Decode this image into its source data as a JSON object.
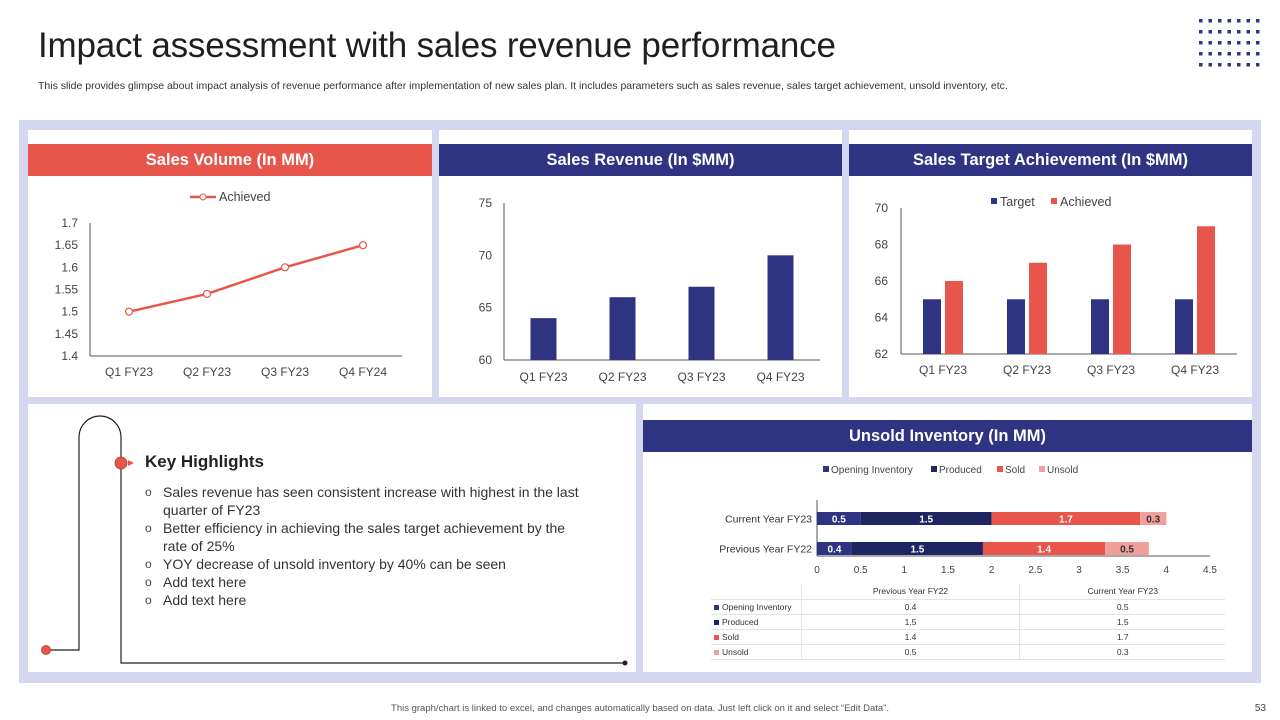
{
  "header": {
    "title": "Impact assessment with sales revenue performance",
    "subtitle": "This slide provides glimpse about impact analysis of revenue performance after implementation of new sales plan. It includes parameters such as sales revenue, sales target achievement, unsold inventory, etc."
  },
  "colors": {
    "red": "#e8554b",
    "navy": "#2e3382",
    "light_red": "#f0a09a",
    "frame": "#d5d6ef"
  },
  "panels": {
    "sales_volume": {
      "header": "Sales Volume (In MM)"
    },
    "sales_revenue": {
      "header": "Sales Revenue (In $MM)"
    },
    "target_achievement": {
      "header": "Sales Target Achievement (In $MM)"
    },
    "unsold_inventory": {
      "header": "Unsold Inventory (In MM)"
    }
  },
  "key_highlights": {
    "title": "Key Highlights",
    "items": [
      "Sales revenue has seen consistent increase with highest in the last quarter of FY23",
      "Better efficiency in achieving the sales target achievement by the rate of 25%",
      "YOY decrease of unsold inventory by 40% can be seen",
      "Add text here",
      "Add text here"
    ]
  },
  "chart_data": [
    {
      "id": "sales_volume",
      "type": "line",
      "title": "Sales Volume (In MM)",
      "categories": [
        "Q1 FY23",
        "Q2 FY23",
        "Q3 FY23",
        "Q4 FY24"
      ],
      "series": [
        {
          "name": "Achieved",
          "values": [
            1.5,
            1.54,
            1.6,
            1.65
          ]
        }
      ],
      "ylim": [
        1.4,
        1.7
      ],
      "yticks": [
        "1.4",
        "1.45",
        "1.5",
        "1.55",
        "1.6",
        "1.65",
        "1.7"
      ],
      "legend": "top"
    },
    {
      "id": "sales_revenue",
      "type": "bar",
      "title": "Sales Revenue (In $MM)",
      "categories": [
        "Q1 FY23",
        "Q2 FY23",
        "Q3 FY23",
        "Q4 FY23"
      ],
      "values": [
        64,
        66,
        67,
        70
      ],
      "ylim": [
        60,
        75
      ],
      "yticks": [
        "60",
        "65",
        "70",
        "75"
      ]
    },
    {
      "id": "target_achievement",
      "type": "bar",
      "title": "Sales Target Achievement (In $MM)",
      "categories": [
        "Q1 FY23",
        "Q2 FY23",
        "Q3 FY23",
        "Q4 FY23"
      ],
      "series": [
        {
          "name": "Target",
          "values": [
            65,
            65,
            65,
            65
          ]
        },
        {
          "name": "Achieved",
          "values": [
            66,
            67,
            68,
            69
          ]
        }
      ],
      "ylim": [
        62,
        70
      ],
      "yticks": [
        "62",
        "64",
        "66",
        "68",
        "70"
      ],
      "legend": "top"
    },
    {
      "id": "unsold_inventory",
      "type": "bar",
      "orientation": "horizontal-stacked",
      "title": "Unsold Inventory (In MM)",
      "categories": [
        "Current Year FY23",
        "Previous Year FY22"
      ],
      "series": [
        {
          "name": "Opening Inventory",
          "values": [
            0.5,
            0.4
          ]
        },
        {
          "name": "Produced",
          "values": [
            1.5,
            1.5
          ]
        },
        {
          "name": "Sold",
          "values": [
            1.7,
            1.4
          ]
        },
        {
          "name": "Unsold",
          "values": [
            0.3,
            0.5
          ]
        }
      ],
      "xlim": [
        0,
        4.5
      ],
      "xticks": [
        "0",
        "0.5",
        "1",
        "1.5",
        "2",
        "2.5",
        "3",
        "3.5",
        "4",
        "4.5"
      ],
      "legend": "top",
      "table": {
        "columns": [
          "Previous Year FY22",
          "Current Year FY23"
        ],
        "rows": [
          {
            "label": "Opening Inventory",
            "values": [
              "0.4",
              "0.5"
            ]
          },
          {
            "label": "Produced",
            "values": [
              "1.5",
              "1.5"
            ]
          },
          {
            "label": "Sold",
            "values": [
              "1.4",
              "1.7"
            ]
          },
          {
            "label": "Unsold",
            "values": [
              "0.5",
              "0.3"
            ]
          }
        ]
      }
    }
  ],
  "footer": {
    "note": "This graph/chart is linked to excel, and changes automatically based on data. Just left click on it and select “Edit Data”.",
    "page": "53"
  }
}
